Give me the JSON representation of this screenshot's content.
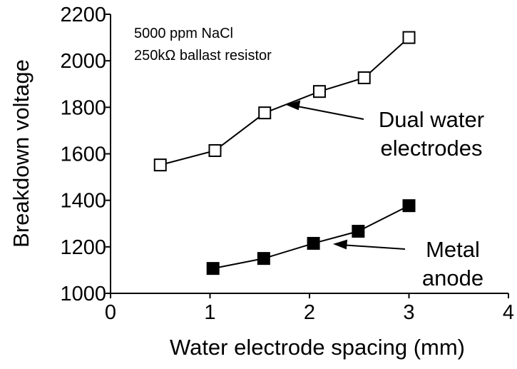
{
  "chart_data": {
    "type": "line",
    "xlabel": "Water electrode spacing (mm)",
    "ylabel": "Breakdown voltage",
    "notes": [
      "5000 ppm NaCl",
      "250kΩ ballast resistor"
    ],
    "xlim": [
      0,
      4
    ],
    "xticks": [
      0,
      1,
      2,
      3,
      4
    ],
    "ylim": [
      1000,
      2200
    ],
    "yticks": [
      1000,
      1200,
      1400,
      1600,
      1800,
      2000,
      2200
    ],
    "series": [
      {
        "label": [
          "Dual water",
          "electrodes"
        ],
        "color": "#000000",
        "marker": "open-square",
        "x": [
          0.5,
          1.05,
          1.55,
          2.1,
          2.55,
          3.0
        ],
        "values": [
          1552,
          1614,
          1776,
          1868,
          1927,
          2100
        ]
      },
      {
        "label": [
          "Metal",
          "anode"
        ],
        "color": "#000000",
        "marker": "filled-square",
        "x": [
          1.03,
          1.54,
          2.04,
          2.49,
          3.0
        ],
        "values": [
          1107,
          1150,
          1215,
          1267,
          1377
        ]
      }
    ]
  }
}
